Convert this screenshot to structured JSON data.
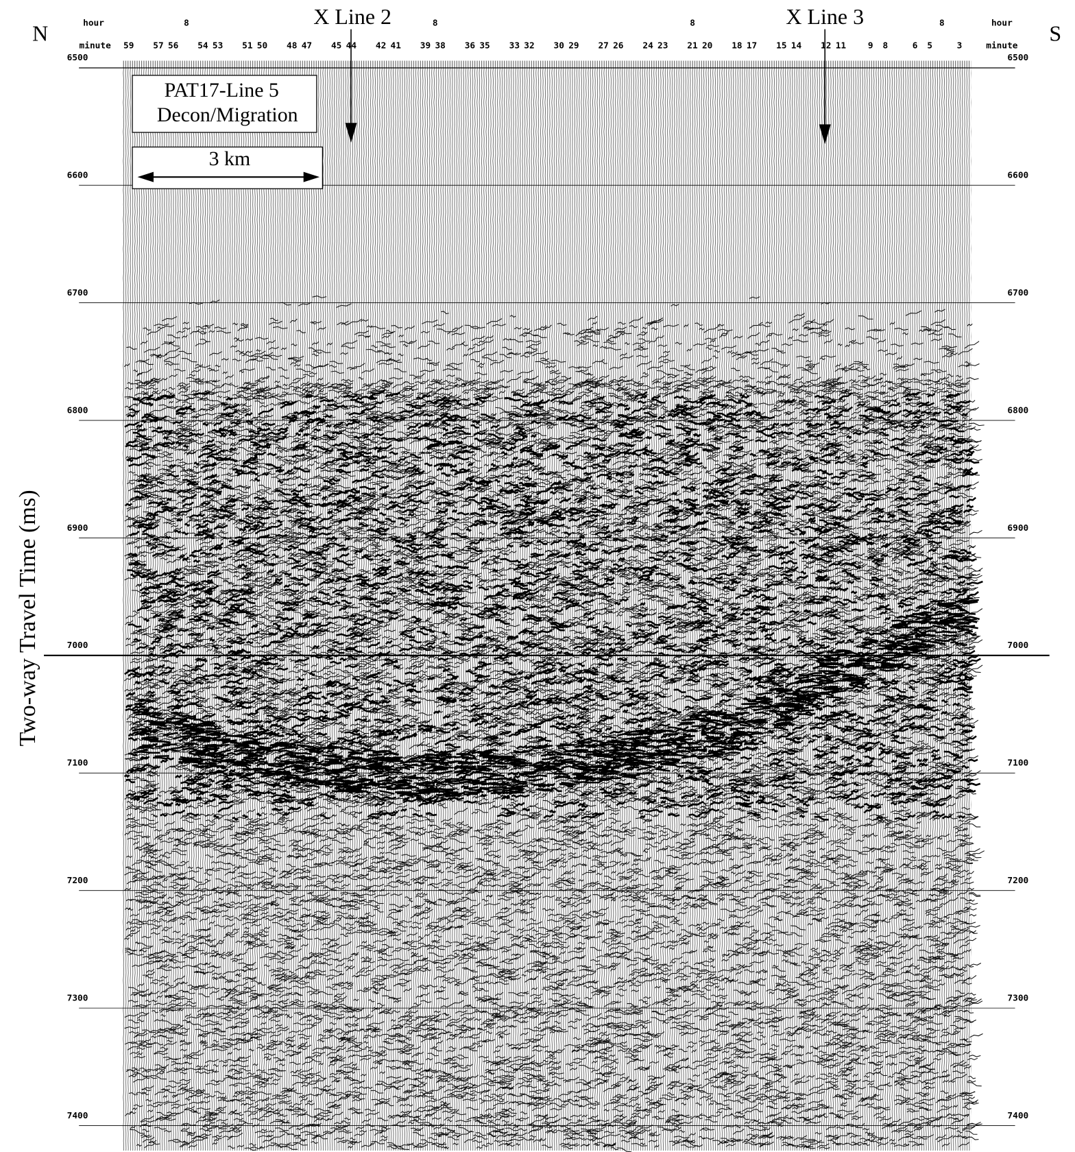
{
  "header": {
    "north": "N",
    "south": "S",
    "hour_label_left": "hour",
    "hour_label_right": "hour",
    "minute_label_left": "minute",
    "minute_label_right": "minute",
    "hours": [
      "8",
      "8",
      "8",
      "8"
    ],
    "minutes": [
      "59",
      "57",
      "56",
      "54",
      "53",
      "51",
      "50",
      "48",
      "47",
      "45",
      "44",
      "42",
      "41",
      "39",
      "38",
      "36",
      "35",
      "33",
      "32",
      "30",
      "29",
      "27",
      "26",
      "24",
      "23",
      "21",
      "20",
      "18",
      "17",
      "15",
      "14",
      "12",
      "11",
      "9",
      "8",
      "6",
      "5",
      "3"
    ]
  },
  "crosslines": [
    "X Line 2",
    "X Line 3"
  ],
  "panel": {
    "title": [
      "PAT17-Line 5",
      "Decon/Migration"
    ],
    "scale_bar": "3 km"
  },
  "axis": {
    "label": "Two-way Travel Time (ms)",
    "ticks": [
      6500,
      6600,
      6700,
      6800,
      6900,
      7000,
      7100,
      7200,
      7300,
      7400
    ]
  }
}
